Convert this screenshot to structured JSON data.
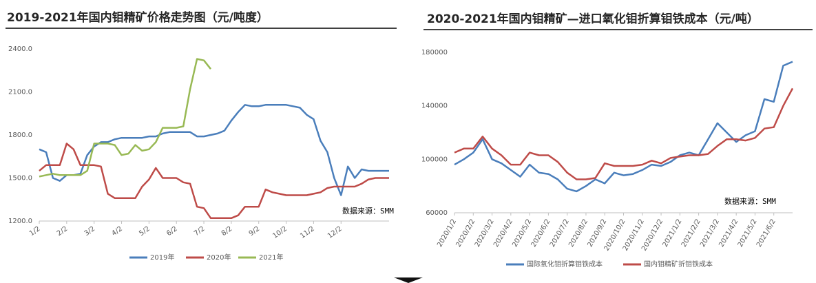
{
  "chart_data": [
    {
      "type": "line",
      "title": "2019-2021年国内钼精矿价格走势图（元/吨度）",
      "annotation": "数据来源：SMM",
      "categories": [
        "1/2",
        null,
        null,
        null,
        "2/2",
        null,
        null,
        null,
        "3/2",
        null,
        null,
        null,
        "4/2",
        null,
        null,
        null,
        "5/2",
        null,
        null,
        null,
        "6/2",
        null,
        null,
        null,
        "7/2",
        null,
        null,
        null,
        "8/2",
        null,
        null,
        null,
        "9/2",
        null,
        null,
        null,
        "10/2",
        null,
        null,
        null,
        "11/2",
        null,
        null,
        null,
        "12/2",
        null,
        null,
        null,
        null,
        null,
        null,
        null
      ],
      "ylim": [
        1200,
        2400
      ],
      "yticks": [
        {
          "value": 1200,
          "label": "1200.0"
        },
        {
          "value": 1500,
          "label": "1500.0"
        },
        {
          "value": 1800,
          "label": "1800.0"
        },
        {
          "value": 2100,
          "label": "2100.0"
        },
        {
          "value": 2400,
          "label": "2400.0"
        }
      ],
      "series": [
        {
          "name": "2019年",
          "color": "#4a7ebb",
          "values": [
            1700,
            1680,
            1500,
            1480,
            1520,
            1520,
            1530,
            1660,
            1720,
            1750,
            1750,
            1770,
            1780,
            1780,
            1780,
            1780,
            1790,
            1790,
            1810,
            1820,
            1820,
            1820,
            1820,
            1790,
            1790,
            1800,
            1810,
            1830,
            1900,
            1960,
            2010,
            2000,
            2000,
            2010,
            2010,
            2010,
            2010,
            2000,
            1990,
            1940,
            1910,
            1760,
            1680,
            1500,
            1380,
            1580,
            1500,
            1560,
            1550,
            1550,
            1550,
            1550
          ]
        },
        {
          "name": "2020年",
          "color": "#be4b48",
          "values": [
            1550,
            1590,
            1590,
            1590,
            1740,
            1700,
            1590,
            1590,
            1590,
            1580,
            1390,
            1360,
            1360,
            1360,
            1360,
            1440,
            1490,
            1570,
            1500,
            1500,
            1500,
            1470,
            1460,
            1300,
            1290,
            1220,
            1220,
            1220,
            1220,
            1240,
            1300,
            1300,
            1300,
            1420,
            1400,
            1390,
            1380,
            1380,
            1380,
            1380,
            1390,
            1400,
            1430,
            1440,
            1440,
            1440,
            1440,
            1460,
            1490,
            1500,
            1500,
            1500
          ]
        },
        {
          "name": "2021年",
          "color": "#98b954",
          "values": [
            1510,
            1520,
            1530,
            1520,
            1520,
            1520,
            1520,
            1550,
            1740,
            1740,
            1740,
            1730,
            1660,
            1670,
            1730,
            1690,
            1700,
            1750,
            1850,
            1850,
            1850,
            1860,
            2120,
            2330,
            2320,
            2260,
            null,
            null,
            null,
            null,
            null,
            null,
            null,
            null,
            null,
            null,
            null,
            null,
            null,
            null,
            null,
            null,
            null,
            null,
            null,
            null,
            null,
            null,
            null,
            null,
            null,
            null
          ]
        }
      ]
    },
    {
      "type": "line",
      "title": "2020-2021年国内钼精矿—进口氧化钼折算钼铁成本（元/吨）",
      "annotation": "数据来源：SMM",
      "categories": [
        "2020/1/2",
        null,
        "2020/2/2",
        null,
        "2020/3/2",
        null,
        "2020/4/2",
        null,
        "2020/5/2",
        null,
        "2020/6/2",
        null,
        "2020/7/2",
        null,
        "2020/8/2",
        null,
        "2020/9/2",
        null,
        "2020/10/2",
        null,
        "2020/11/2",
        null,
        "2020/12/2",
        null,
        "2021/1/2",
        null,
        "2021/2/2",
        null,
        "2021/3/2",
        null,
        "2021/4/2",
        null,
        "2021/5/2",
        null,
        "2021/6/2",
        null,
        null
      ],
      "ylim": [
        60000,
        180000
      ],
      "yticks": [
        60000,
        100000,
        140000,
        180000
      ],
      "series": [
        {
          "name": "国际氧化钼折算钼铁成本",
          "color": "#4a7ebb",
          "values": [
            96000,
            100000,
            105000,
            115000,
            100000,
            97000,
            92000,
            87000,
            96000,
            90000,
            89000,
            85000,
            78000,
            76000,
            80000,
            85000,
            82000,
            90000,
            88000,
            89000,
            92000,
            96000,
            95000,
            98000,
            103000,
            105000,
            103000,
            115000,
            127000,
            120000,
            113000,
            118000,
            121000,
            145000,
            143000,
            170000,
            173000
          ]
        },
        {
          "name": "国内钼精矿折钼铁成本",
          "color": "#be4b48",
          "values": [
            105000,
            108000,
            108000,
            117000,
            108000,
            103000,
            96000,
            96000,
            105000,
            103000,
            103000,
            98000,
            90000,
            85000,
            85000,
            86000,
            97000,
            95000,
            95000,
            95000,
            96000,
            99000,
            97000,
            101000,
            102000,
            103000,
            103000,
            104000,
            110000,
            115000,
            115000,
            114000,
            116000,
            123000,
            124000,
            140000,
            153000
          ]
        }
      ]
    }
  ]
}
